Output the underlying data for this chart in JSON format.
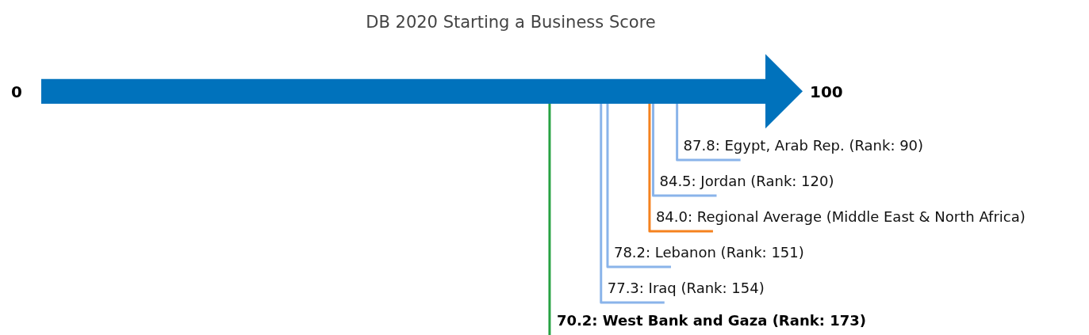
{
  "chart_data": {
    "type": "other",
    "title": "DB 2020 Starting a Business Score",
    "categories": [
      "Egypt, Arab Rep. (Rank: 90)",
      "Jordan (Rank: 120)",
      "Regional Average (Middle East & North Africa)",
      "Lebanon (Rank: 151)",
      "Iraq (Rank: 154)",
      "West Bank and Gaza (Rank: 173)"
    ],
    "series": [
      {
        "values": [
          87.8,
          84.5,
          84.0,
          78.2,
          77.3,
          null
        ],
        "colors": [
          "#8ab4ea",
          "#8ab4ea",
          "#f5821f",
          "#8ab4ea",
          "#8ab4ea",
          null
        ],
        "value_labels": [
          "87.8",
          "84.5",
          "84.0",
          "78.2",
          "77.3",
          null
        ]
      },
      {
        "values": [
          null,
          null,
          null,
          null,
          null,
          70.2
        ],
        "colors": [
          null,
          null,
          null,
          null,
          null,
          "#27a243"
        ],
        "value_labels": [
          null,
          null,
          null,
          null,
          null,
          "70.2"
        ]
      }
    ],
    "annotations": [
      "0",
      "100",
      ":"
    ]
  }
}
